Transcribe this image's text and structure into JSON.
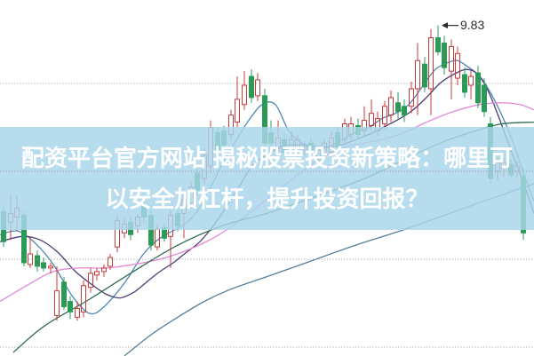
{
  "banner": {
    "line1": "配资平台官方网站 揭秘股票投资新策略：哪里可",
    "line2": "以安全加杠杆，提升投资回报？",
    "bg_rgba": "rgba(169,213,233,0.84)",
    "text_color": "#ffffff"
  },
  "annotation": {
    "label": "9.83",
    "price": 9.83,
    "x": 493,
    "arrow": "left",
    "color": "#2b2b2b"
  },
  "chart_data": {
    "type": "candlestick",
    "title": "",
    "xlabel": "",
    "ylabel": "",
    "ylim": [
      7.93,
      9.97
    ],
    "grid": true,
    "gridlines": [
      9.5,
      9.0,
      8.5,
      8.0
    ],
    "grid_color": "#9a9a9a",
    "up_color": "#c83a3a",
    "down_color": "#2b9a57",
    "candle_width": 5,
    "candles": [
      [
        4,
        8.77,
        8.8,
        8.57,
        8.6,
        "d"
      ],
      [
        12,
        8.71,
        8.87,
        8.61,
        8.76,
        "u"
      ],
      [
        19,
        8.74,
        8.86,
        8.66,
        8.79,
        "u"
      ],
      [
        27,
        8.75,
        8.77,
        8.46,
        8.48,
        "d"
      ],
      [
        34,
        8.47,
        8.63,
        8.45,
        8.53,
        "u"
      ],
      [
        42,
        8.52,
        8.55,
        8.43,
        8.46,
        "d"
      ],
      [
        49,
        8.48,
        8.51,
        8.43,
        8.45,
        "d"
      ],
      [
        57,
        8.45,
        8.48,
        8.42,
        8.46,
        "u"
      ],
      [
        64,
        8.18,
        8.46,
        8.15,
        8.32,
        "u"
      ],
      [
        72,
        8.37,
        8.4,
        8.21,
        8.23,
        "d"
      ],
      [
        79,
        8.26,
        8.29,
        8.16,
        8.2,
        "d"
      ],
      [
        87,
        8.17,
        8.26,
        8.15,
        8.22,
        "u"
      ],
      [
        94,
        8.2,
        8.38,
        8.17,
        8.35,
        "u"
      ],
      [
        102,
        8.34,
        8.45,
        8.31,
        8.42,
        "u"
      ],
      [
        109,
        8.41,
        8.45,
        8.38,
        8.43,
        "u"
      ],
      [
        117,
        8.43,
        8.47,
        8.4,
        8.45,
        "u"
      ],
      [
        124,
        8.46,
        8.53,
        8.44,
        8.51,
        "u"
      ],
      [
        132,
        8.57,
        8.75,
        8.54,
        8.72,
        "u"
      ],
      [
        140,
        8.65,
        8.73,
        8.62,
        8.7,
        "u"
      ],
      [
        147,
        8.71,
        8.74,
        8.61,
        8.64,
        "d"
      ],
      [
        155,
        8.69,
        8.76,
        8.65,
        8.74,
        "u"
      ],
      [
        162,
        8.81,
        8.84,
        8.71,
        8.74,
        "d"
      ],
      [
        170,
        8.75,
        8.78,
        8.55,
        8.58,
        "d"
      ],
      [
        177,
        8.57,
        8.7,
        8.55,
        8.67,
        "u"
      ],
      [
        185,
        8.68,
        8.71,
        8.6,
        8.62,
        "d"
      ],
      [
        192,
        8.63,
        8.78,
        8.45,
        8.75,
        "u"
      ],
      [
        200,
        8.76,
        8.79,
        8.66,
        8.69,
        "d"
      ],
      [
        207,
        8.76,
        8.87,
        8.62,
        8.84,
        "u"
      ],
      [
        215,
        8.82,
        8.94,
        8.79,
        8.91,
        "u"
      ],
      [
        222,
        8.99,
        9.02,
        8.86,
        8.89,
        "d"
      ],
      [
        230,
        8.96,
        9.13,
        8.93,
        9.09,
        "u"
      ],
      [
        237,
        9.03,
        9.29,
        8.99,
        9.25,
        "u"
      ],
      [
        245,
        9.22,
        9.25,
        9.09,
        9.12,
        "d"
      ],
      [
        252,
        9.23,
        9.26,
        9.12,
        9.15,
        "d"
      ],
      [
        260,
        9.21,
        9.35,
        9.18,
        9.32,
        "u"
      ],
      [
        267,
        9.28,
        9.54,
        9.25,
        9.41,
        "u"
      ],
      [
        275,
        9.38,
        9.57,
        9.35,
        9.49,
        "u"
      ],
      [
        283,
        9.54,
        9.58,
        9.39,
        9.42,
        "d"
      ],
      [
        290,
        9.43,
        9.56,
        9.4,
        9.52,
        "u"
      ],
      [
        298,
        9.43,
        9.47,
        9.13,
        9.16,
        "d"
      ],
      [
        305,
        9.22,
        9.29,
        9.13,
        9.16,
        "d"
      ],
      [
        313,
        9.13,
        9.29,
        9.1,
        9.19,
        "u"
      ],
      [
        320,
        9.18,
        9.22,
        9.09,
        9.11,
        "d"
      ],
      [
        328,
        9.12,
        9.23,
        9.09,
        9.18,
        "u"
      ],
      [
        335,
        9.12,
        9.21,
        9.08,
        9.18,
        "u"
      ],
      [
        343,
        9.12,
        9.17,
        9.09,
        9.14,
        "u"
      ],
      [
        350,
        9.16,
        9.19,
        9.06,
        9.11,
        "d"
      ],
      [
        358,
        9.07,
        9.14,
        9.04,
        9.12,
        "u"
      ],
      [
        365,
        9.1,
        9.18,
        9.07,
        9.16,
        "u"
      ],
      [
        373,
        9.11,
        9.23,
        9.08,
        9.19,
        "u"
      ],
      [
        380,
        9.22,
        9.25,
        9.11,
        9.14,
        "d"
      ],
      [
        388,
        9.18,
        9.3,
        9.15,
        9.27,
        "u"
      ],
      [
        395,
        9.21,
        9.31,
        9.18,
        9.27,
        "u"
      ],
      [
        403,
        9.26,
        9.3,
        9.18,
        9.21,
        "d"
      ],
      [
        410,
        9.23,
        9.37,
        9.2,
        9.29,
        "u"
      ],
      [
        418,
        9.26,
        9.41,
        9.23,
        9.33,
        "u"
      ],
      [
        425,
        9.23,
        9.34,
        9.2,
        9.3,
        "u"
      ],
      [
        433,
        9.27,
        9.4,
        9.24,
        9.37,
        "u"
      ],
      [
        440,
        9.32,
        9.46,
        9.28,
        9.42,
        "u"
      ],
      [
        448,
        9.39,
        9.45,
        9.3,
        9.34,
        "d"
      ],
      [
        455,
        9.37,
        9.41,
        9.28,
        9.32,
        "d"
      ],
      [
        463,
        9.37,
        9.51,
        9.33,
        9.47,
        "u"
      ],
      [
        470,
        9.47,
        9.73,
        9.32,
        9.63,
        "u"
      ],
      [
        478,
        9.61,
        9.65,
        9.45,
        9.48,
        "d"
      ],
      [
        485,
        9.47,
        9.81,
        9.32,
        9.76,
        "u"
      ],
      [
        493,
        9.76,
        9.83,
        9.66,
        9.68,
        "d"
      ],
      [
        500,
        9.73,
        9.77,
        9.55,
        9.59,
        "d"
      ],
      [
        508,
        9.57,
        9.75,
        9.41,
        9.71,
        "u"
      ],
      [
        515,
        9.53,
        9.71,
        9.49,
        9.67,
        "u"
      ],
      [
        523,
        9.55,
        9.59,
        9.42,
        9.45,
        "d"
      ],
      [
        530,
        9.49,
        9.57,
        9.41,
        9.54,
        "u"
      ],
      [
        538,
        9.56,
        9.6,
        9.36,
        9.39,
        "d"
      ],
      [
        545,
        9.49,
        9.53,
        9.31,
        9.34,
        "d"
      ],
      [
        552,
        9.27,
        9.31,
        8.93,
        8.96,
        "d"
      ],
      [
        560,
        9.0,
        9.08,
        8.95,
        9.05,
        "u"
      ],
      [
        567,
        9.02,
        9.08,
        8.97,
        9.05,
        "u"
      ],
      [
        575,
        9.04,
        9.07,
        8.96,
        8.98,
        "d"
      ],
      [
        582,
        9.0,
        9.06,
        8.96,
        9.03,
        "u"
      ],
      [
        589,
        8.97,
        9.02,
        8.61,
        8.65,
        "d"
      ]
    ],
    "moving_averages": [
      {
        "name": "ma-short",
        "color": "#4e86b2",
        "points": [
          [
            0,
            8.64
          ],
          [
            20,
            8.66
          ],
          [
            40,
            8.59
          ],
          [
            60,
            8.47
          ],
          [
            80,
            8.3
          ],
          [
            95,
            8.21
          ],
          [
            105,
            8.19
          ],
          [
            115,
            8.22
          ],
          [
            130,
            8.3
          ],
          [
            145,
            8.4
          ],
          [
            160,
            8.52
          ],
          [
            175,
            8.6
          ],
          [
            190,
            8.65
          ],
          [
            205,
            8.69
          ],
          [
            220,
            8.76
          ],
          [
            235,
            8.89
          ],
          [
            250,
            9.04
          ],
          [
            265,
            9.17
          ],
          [
            280,
            9.29
          ],
          [
            295,
            9.38
          ],
          [
            310,
            9.38
          ],
          [
            325,
            9.23
          ],
          [
            340,
            9.16
          ],
          [
            355,
            9.13
          ],
          [
            370,
            9.14
          ],
          [
            385,
            9.18
          ],
          [
            400,
            9.22
          ],
          [
            415,
            9.25
          ],
          [
            430,
            9.3
          ],
          [
            445,
            9.33
          ],
          [
            460,
            9.38
          ],
          [
            475,
            9.48
          ],
          [
            490,
            9.58
          ],
          [
            505,
            9.62
          ],
          [
            515,
            9.63
          ],
          [
            525,
            9.6
          ],
          [
            540,
            9.54
          ],
          [
            555,
            9.42
          ],
          [
            570,
            9.26
          ],
          [
            580,
            9.13
          ],
          [
            590,
            8.98
          ],
          [
            601,
            8.83
          ]
        ]
      },
      {
        "name": "ma-mid",
        "color": "#4a3e74",
        "points": [
          [
            0,
            8.6
          ],
          [
            25,
            8.63
          ],
          [
            45,
            8.61
          ],
          [
            65,
            8.54
          ],
          [
            85,
            8.43
          ],
          [
            105,
            8.35
          ],
          [
            120,
            8.3
          ],
          [
            135,
            8.28
          ],
          [
            150,
            8.31
          ],
          [
            165,
            8.37
          ],
          [
            180,
            8.43
          ],
          [
            195,
            8.48
          ],
          [
            210,
            8.54
          ],
          [
            225,
            8.6
          ],
          [
            240,
            8.69
          ],
          [
            255,
            8.8
          ],
          [
            270,
            8.92
          ],
          [
            285,
            9.04
          ],
          [
            300,
            9.09
          ],
          [
            315,
            9.14
          ],
          [
            330,
            9.15
          ],
          [
            345,
            9.15
          ],
          [
            360,
            9.14
          ],
          [
            375,
            9.14
          ],
          [
            390,
            9.16
          ],
          [
            405,
            9.19
          ],
          [
            420,
            9.22
          ],
          [
            435,
            9.26
          ],
          [
            450,
            9.3
          ],
          [
            465,
            9.35
          ],
          [
            480,
            9.42
          ],
          [
            495,
            9.5
          ],
          [
            510,
            9.55
          ],
          [
            525,
            9.58
          ],
          [
            538,
            9.55
          ],
          [
            550,
            9.45
          ],
          [
            562,
            9.3
          ],
          [
            575,
            9.12
          ],
          [
            588,
            8.95
          ],
          [
            601,
            8.76
          ]
        ]
      },
      {
        "name": "ma-20",
        "color": "#e289d8",
        "points": [
          [
            0,
            8.26
          ],
          [
            30,
            8.35
          ],
          [
            60,
            8.43
          ],
          [
            90,
            8.45
          ],
          [
            120,
            8.45
          ],
          [
            150,
            8.47
          ],
          [
            180,
            8.5
          ],
          [
            210,
            8.55
          ],
          [
            240,
            8.62
          ],
          [
            270,
            8.72
          ],
          [
            300,
            8.84
          ],
          [
            330,
            8.96
          ],
          [
            360,
            9.07
          ],
          [
            390,
            9.14
          ],
          [
            420,
            9.17
          ],
          [
            450,
            9.21
          ],
          [
            480,
            9.28
          ],
          [
            510,
            9.34
          ],
          [
            540,
            9.38
          ],
          [
            565,
            9.39
          ],
          [
            585,
            9.38
          ],
          [
            601,
            9.35
          ]
        ]
      },
      {
        "name": "ma-long",
        "color": "#2f6e52",
        "points": [
          [
            15,
            7.97
          ],
          [
            50,
            8.12
          ],
          [
            100,
            8.27
          ],
          [
            150,
            8.43
          ],
          [
            200,
            8.58
          ],
          [
            250,
            8.69
          ],
          [
            300,
            8.76
          ],
          [
            340,
            8.83
          ],
          [
            380,
            8.9
          ],
          [
            420,
            8.98
          ],
          [
            460,
            9.08
          ],
          [
            500,
            9.17
          ],
          [
            535,
            9.23
          ],
          [
            565,
            9.27
          ],
          [
            601,
            9.28
          ]
        ]
      },
      {
        "name": "ma-longest",
        "color": "#55809a",
        "points": [
          [
            140,
            7.95
          ],
          [
            170,
            8.07
          ],
          [
            200,
            8.17
          ],
          [
            230,
            8.26
          ],
          [
            260,
            8.33
          ],
          [
            300,
            8.4
          ],
          [
            350,
            8.49
          ],
          [
            400,
            8.58
          ],
          [
            450,
            8.66
          ],
          [
            500,
            8.75
          ],
          [
            550,
            8.84
          ],
          [
            601,
            8.93
          ]
        ]
      }
    ]
  }
}
